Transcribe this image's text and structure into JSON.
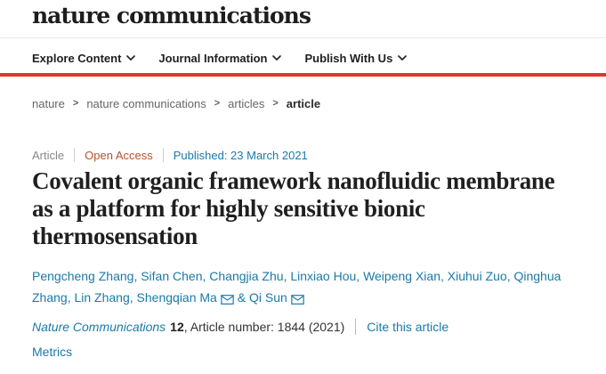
{
  "colors": {
    "brand_red": "#db392c",
    "link_blue": "#1a7aa8",
    "open_access_orange": "#b4532a",
    "text_dark": "#1f1f1f",
    "muted_gray": "#878787"
  },
  "header": {
    "logo": "nature communications",
    "nav_items": [
      {
        "label": "Explore Content",
        "icon": "chevron-down-icon"
      },
      {
        "label": "Journal Information",
        "icon": "chevron-down-icon"
      },
      {
        "label": "Publish With Us",
        "icon": "chevron-down-icon"
      }
    ]
  },
  "breadcrumb": {
    "separator": ">",
    "items": [
      "nature",
      "nature communications",
      "articles",
      "article"
    ]
  },
  "article": {
    "meta": {
      "type": "Article",
      "access": "Open Access",
      "published": "Published: 23 March 2021"
    },
    "title_lines": [
      "Covalent organic framework nanofluidic membrane",
      "as a platform for highly sensitive bionic",
      "thermosensation"
    ],
    "authors": [
      {
        "name": "Pengcheng Zhang",
        "mail": false
      },
      {
        "name": "Sifan Chen",
        "mail": false
      },
      {
        "name": "Changjia Zhu",
        "mail": false
      },
      {
        "name": "Linxiao Hou",
        "mail": false
      },
      {
        "name": "Weipeng Xian",
        "mail": false
      },
      {
        "name": "Xiuhui Zuo",
        "mail": false
      },
      {
        "name": "Qinghua Zhang",
        "mail": false
      },
      {
        "name": "Lin Zhang",
        "mail": false
      },
      {
        "name": "Shengqian Ma",
        "mail": true
      },
      {
        "name": "Qi Sun",
        "mail": true
      }
    ],
    "author_final_separator": "&",
    "citation": {
      "journal": "Nature Communications",
      "volume": "12",
      "suffix": ", Article number: 1844 (2021)",
      "cite_link": "Cite this article"
    },
    "metrics_link": "Metrics"
  }
}
